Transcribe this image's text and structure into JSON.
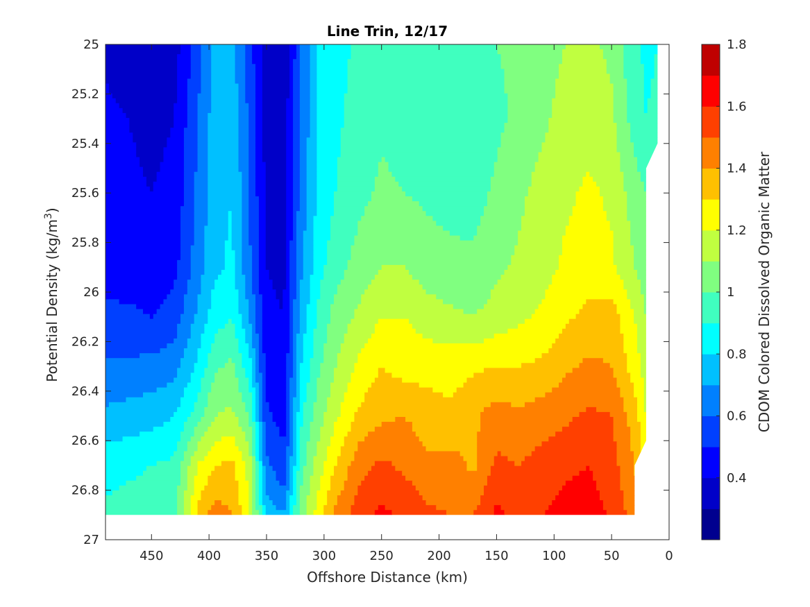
{
  "chart_data": {
    "type": "heatmap",
    "plot_style": "filled-contour",
    "title": "Line Trin, 12/17",
    "xlabel": "Offshore Distance (km)",
    "ylabel_main": "Potential Density (kg/m",
    "ylabel_sup": "3",
    "ylabel_close": ")",
    "colorbar_label": "CDOM Colored Dissolved Organic Matter",
    "xlim": [
      0,
      490
    ],
    "x_reversed": true,
    "ylim": [
      25,
      27
    ],
    "y_reversed": true,
    "x_ticks": [
      450,
      400,
      350,
      300,
      250,
      200,
      150,
      100,
      50,
      0
    ],
    "x_tick_labels": [
      "450",
      "400",
      "350",
      "300",
      "250",
      "200",
      "150",
      "100",
      "50",
      "0"
    ],
    "y_ticks": [
      25,
      25.2,
      25.4,
      25.6,
      25.8,
      26,
      26.2,
      26.4,
      26.6,
      26.8,
      27
    ],
    "y_tick_labels": [
      "25",
      "25.2",
      "25.4",
      "25.6",
      "25.8",
      "26",
      "26.2",
      "26.4",
      "26.6",
      "26.8",
      "27"
    ],
    "colorbar": {
      "range": [
        0.2,
        1.8
      ],
      "tick_values": [
        0.4,
        0.6,
        0.8,
        1.0,
        1.2,
        1.4,
        1.6,
        1.8
      ],
      "tick_labels": [
        "0.4",
        "0.6",
        "0.8",
        "1",
        "1.2",
        "1.4",
        "1.6",
        "1.8"
      ],
      "levels": [
        0.2,
        0.3,
        0.4,
        0.5,
        0.6,
        0.7,
        0.8,
        0.9,
        1.0,
        1.1,
        1.2,
        1.3,
        1.4,
        1.5,
        1.6,
        1.7,
        1.8
      ],
      "colormap": "jet",
      "colors": [
        "#00008f",
        "#0000c8",
        "#0000ff",
        "#0040ff",
        "#0080ff",
        "#00c0ff",
        "#00ffff",
        "#40ffbf",
        "#80ff80",
        "#c0ff40",
        "#ffff00",
        "#ffc000",
        "#ff8000",
        "#ff4000",
        "#ff0000",
        "#bf0000"
      ]
    },
    "grid": false,
    "data_extent": {
      "x_max": 490,
      "x_min_surface": 10,
      "x_min_bottom": 30,
      "y_min": 25,
      "y_max": 26.9
    },
    "x_profile_km": [
      490,
      470,
      450,
      430,
      410,
      395,
      380,
      365,
      350,
      335,
      320,
      305,
      290,
      270,
      250,
      230,
      210,
      190,
      170,
      150,
      130,
      110,
      90,
      70,
      50,
      30,
      20,
      10
    ],
    "y_levels": [
      25.0,
      25.3,
      25.6,
      25.9,
      26.1,
      26.3,
      26.5,
      26.7,
      26.9
    ],
    "values": [
      [
        0.38,
        0.35,
        0.35,
        0.36,
        0.55,
        0.72,
        0.72,
        0.55,
        0.33,
        0.32,
        0.6,
        0.8,
        0.86,
        0.92,
        0.98,
        0.98,
        0.98,
        0.98,
        0.97,
        1.0,
        1.02,
        1.06,
        1.1,
        1.12,
        1.08,
        0.92,
        0.88,
        0.9
      ],
      [
        0.42,
        0.4,
        0.37,
        0.4,
        0.6,
        0.75,
        0.78,
        0.58,
        0.35,
        0.34,
        0.62,
        0.8,
        0.88,
        0.94,
        0.98,
        0.96,
        0.95,
        0.94,
        0.93,
        0.98,
        1.02,
        1.08,
        1.14,
        1.15,
        1.12,
        0.95,
        0.9,
        0.92
      ],
      [
        0.44,
        0.42,
        0.4,
        0.43,
        0.62,
        0.76,
        0.8,
        0.6,
        0.38,
        0.36,
        0.64,
        0.82,
        0.9,
        0.97,
        1.02,
        1.0,
        0.98,
        0.96,
        0.96,
        1.02,
        1.08,
        1.14,
        1.18,
        1.22,
        1.18,
        1.05,
        1.0,
        1.0
      ],
      [
        0.46,
        0.45,
        0.43,
        0.47,
        0.65,
        0.78,
        0.82,
        0.62,
        0.4,
        0.38,
        0.68,
        0.86,
        0.96,
        1.04,
        1.1,
        1.1,
        1.05,
        1.03,
        1.02,
        1.08,
        1.12,
        1.16,
        1.22,
        1.24,
        1.22,
        1.1,
        1.05,
        1.05
      ],
      [
        0.52,
        0.52,
        0.5,
        0.55,
        0.72,
        0.85,
        0.9,
        0.7,
        0.42,
        0.4,
        0.74,
        0.92,
        1.04,
        1.12,
        1.2,
        1.2,
        1.15,
        1.12,
        1.1,
        1.14,
        1.18,
        1.22,
        1.28,
        1.33,
        1.35,
        1.2,
        1.1,
        1.1
      ],
      [
        0.62,
        0.62,
        0.63,
        0.66,
        0.82,
        0.98,
        1.02,
        0.84,
        0.46,
        0.42,
        0.8,
        0.98,
        1.1,
        1.22,
        1.3,
        1.26,
        1.26,
        1.26,
        1.28,
        1.3,
        1.3,
        1.32,
        1.38,
        1.42,
        1.4,
        1.25,
        1.15,
        1.12
      ],
      [
        0.72,
        0.74,
        0.76,
        0.8,
        0.95,
        1.1,
        1.12,
        1.0,
        0.52,
        0.46,
        0.88,
        1.05,
        1.18,
        1.32,
        1.38,
        1.4,
        1.35,
        1.32,
        1.38,
        1.45,
        1.42,
        1.45,
        1.48,
        1.52,
        1.5,
        1.35,
        1.2,
        1.15
      ],
      [
        0.86,
        0.88,
        0.9,
        0.92,
        1.2,
        1.3,
        1.32,
        1.16,
        0.62,
        0.52,
        0.96,
        1.15,
        1.3,
        1.46,
        1.52,
        1.48,
        1.42,
        1.44,
        1.38,
        1.52,
        1.5,
        1.54,
        1.58,
        1.6,
        1.54,
        1.4,
        1.25,
        1.2
      ],
      [
        0.92,
        0.94,
        0.95,
        0.98,
        1.32,
        1.45,
        1.4,
        1.22,
        0.76,
        0.7,
        1.05,
        1.25,
        1.42,
        1.56,
        1.62,
        1.58,
        1.52,
        1.5,
        1.5,
        1.62,
        1.58,
        1.6,
        1.64,
        1.66,
        1.58,
        1.45,
        1.3,
        1.25
      ]
    ]
  }
}
